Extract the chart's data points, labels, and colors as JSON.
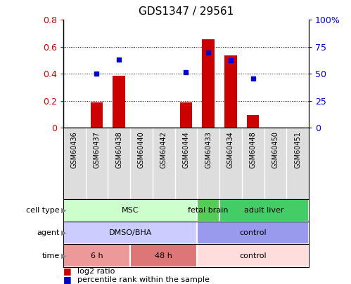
{
  "title": "GDS1347 / 29561",
  "samples": [
    "GSM60436",
    "GSM60437",
    "GSM60438",
    "GSM60440",
    "GSM60442",
    "GSM60444",
    "GSM60433",
    "GSM60434",
    "GSM60448",
    "GSM60450",
    "GSM60451"
  ],
  "log2_ratio": [
    0.0,
    0.19,
    0.385,
    0.0,
    0.0,
    0.19,
    0.655,
    0.535,
    0.095,
    0.0,
    0.0
  ],
  "percentile_rank": [
    null,
    0.5,
    0.635,
    null,
    null,
    0.515,
    0.695,
    0.625,
    0.455,
    null,
    null
  ],
  "ylim_left": [
    0,
    0.8
  ],
  "ylim_right": [
    0,
    100
  ],
  "yticks_left": [
    0,
    0.2,
    0.4,
    0.6,
    0.8
  ],
  "yticks_right": [
    0,
    25,
    50,
    75,
    100
  ],
  "ytick_labels_left": [
    "0",
    "0.2",
    "0.4",
    "0.6",
    "0.8"
  ],
  "ytick_labels_right": [
    "0",
    "25",
    "50",
    "75",
    "100%"
  ],
  "bar_color": "#cc0000",
  "dot_color": "#0000cc",
  "cell_type_groups": [
    {
      "label": "MSC",
      "start": 0,
      "end": 6,
      "color": "#ccffcc"
    },
    {
      "label": "fetal brain",
      "start": 6,
      "end": 7,
      "color": "#55cc55"
    },
    {
      "label": "adult liver",
      "start": 7,
      "end": 11,
      "color": "#44cc66"
    }
  ],
  "agent_groups": [
    {
      "label": "DMSO/BHA",
      "start": 0,
      "end": 6,
      "color": "#ccccff"
    },
    {
      "label": "control",
      "start": 6,
      "end": 11,
      "color": "#9999ee"
    }
  ],
  "time_groups": [
    {
      "label": "6 h",
      "start": 0,
      "end": 3,
      "color": "#ee9999"
    },
    {
      "label": "48 h",
      "start": 3,
      "end": 6,
      "color": "#dd7777"
    },
    {
      "label": "control",
      "start": 6,
      "end": 11,
      "color": "#ffdddd"
    }
  ],
  "row_labels": [
    "cell type",
    "agent",
    "time"
  ],
  "legend": [
    "log2 ratio",
    "percentile rank within the sample"
  ],
  "bg_color": "#ffffff",
  "sample_bg_color": "#dddddd",
  "tick_label_color_left": "#cc0000",
  "tick_label_color_right": "#0000cc",
  "gridline_color": "#000000"
}
